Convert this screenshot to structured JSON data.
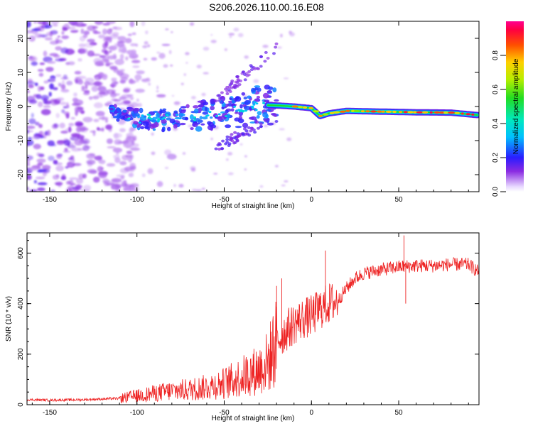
{
  "title": "S206.2026.110.00.16.E08",
  "chart_data": [
    {
      "type": "heatmap",
      "panel": "spectrogram",
      "xlabel": "Height of straight line (km)",
      "ylabel": "Frequency (Hz)",
      "xlim": [
        -163,
        96
      ],
      "ylim": [
        -25,
        25
      ],
      "xticks": [
        -150,
        -100,
        -50,
        0,
        50
      ],
      "yticks": [
        -20,
        -10,
        0,
        10,
        20
      ],
      "colorbar": {
        "label": "Normalized spectral amplitude",
        "range": [
          0.0,
          1.0
        ],
        "ticks": [
          0.0,
          0.2,
          0.4,
          0.6,
          0.8
        ],
        "tick_labels": [
          "0.0",
          "0.2",
          "0.4",
          "0.6",
          "0.8"
        ]
      },
      "ridge": {
        "description_points_km_hz": [
          [
            -115,
            -1.2
          ],
          [
            -100,
            -3.5
          ],
          [
            -80,
            -4.0
          ],
          [
            -60,
            -2.5
          ],
          [
            -40,
            -1.0
          ],
          [
            -30,
            0.5
          ],
          [
            -20,
            0.3
          ],
          [
            -10,
            0.0
          ],
          [
            0,
            -0.5
          ],
          [
            5,
            -2.8
          ],
          [
            10,
            -2.0
          ],
          [
            20,
            -1.3
          ],
          [
            40,
            -1.5
          ],
          [
            60,
            -1.7
          ],
          [
            80,
            -1.8
          ],
          [
            95,
            -2.5
          ]
        ],
        "peak_amplitude": 0.95
      },
      "noise_region_km": [
        -163,
        -100
      ]
    },
    {
      "type": "line",
      "panel": "snr",
      "xlabel": "Height of straight line (km)",
      "ylabel": "SNR (10 * v/v)",
      "xlim": [
        -163,
        96
      ],
      "ylim": [
        0,
        680
      ],
      "xticks": [
        -150,
        -100,
        -50,
        0,
        50
      ],
      "yticks": [
        0,
        200,
        400,
        600
      ],
      "color": "#ee2222",
      "series": [
        {
          "name": "SNR",
          "x": [
            -163,
            -150,
            -130,
            -110,
            -100,
            -90,
            -80,
            -70,
            -60,
            -50,
            -40,
            -30,
            -25,
            -20,
            -15,
            -10,
            -5,
            0,
            5,
            10,
            15,
            20,
            25,
            30,
            40,
            50,
            60,
            70,
            80,
            90,
            96
          ],
          "y": [
            20,
            18,
            20,
            25,
            35,
            45,
            55,
            60,
            70,
            85,
            110,
            140,
            170,
            250,
            290,
            320,
            340,
            350,
            380,
            400,
            410,
            460,
            500,
            520,
            535,
            545,
            550,
            550,
            555,
            555,
            525
          ]
        }
      ],
      "spikes": [
        [
          -20,
          470
        ],
        [
          -17,
          500
        ],
        [
          8,
          610
        ],
        [
          53,
          670
        ],
        [
          54,
          400
        ]
      ]
    }
  ]
}
